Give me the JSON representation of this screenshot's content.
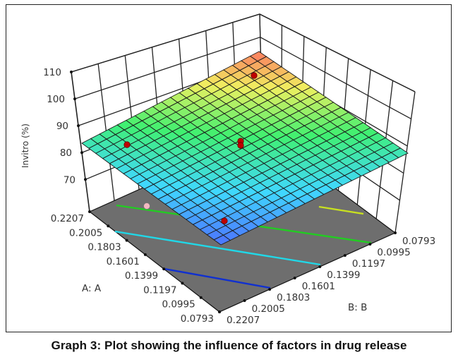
{
  "caption": "Graph 3: Plot showing the influence of factors in drug release",
  "chart_data": {
    "type": "surface3d",
    "title": "",
    "zlabel": "Invitro (%)",
    "xlabel": "A: A",
    "ylabel": "B: B",
    "z_ticks": [
      "70",
      "80",
      "90",
      "100",
      "110"
    ],
    "z_tick_values": [
      70,
      80,
      90,
      100,
      110
    ],
    "zlim": [
      58,
      110
    ],
    "a_ticks": [
      "0.2207",
      "0.2005",
      "0.1803",
      "0.1601",
      "0.1399",
      "0.1197",
      "0.0995",
      "0.0793"
    ],
    "b_ticks": [
      "0.0793",
      "0.0995",
      "0.1197",
      "0.1399",
      "0.1601",
      "0.1803",
      "0.2005",
      "0.2207"
    ],
    "a_range": [
      0.0793,
      0.2207
    ],
    "b_range": [
      0.0793,
      0.2207
    ],
    "surface_corners": {
      "a_high_b_high": 80,
      "a_low_b_high": 65,
      "a_low_b_low": 80,
      "a_high_b_low": 108
    },
    "grid_divisions": 20,
    "design_points": [
      {
        "A": 0.2005,
        "B": 0.2207,
        "z": 80,
        "color": "#c00000"
      },
      {
        "A": 0.2207,
        "B": 0.1197,
        "z": 104,
        "color": "#c00000"
      },
      {
        "A": 0.15,
        "B": 0.15,
        "z": 86,
        "color": "#c00000"
      },
      {
        "A": 0.15,
        "B": 0.15,
        "z": 85,
        "color": "#c00000"
      },
      {
        "A": 0.0995,
        "B": 0.1803,
        "z": 70,
        "color": "#c00000"
      },
      {
        "A": 0.2207,
        "B": 0.21,
        "z": 58,
        "color": "#f4b8c0"
      }
    ],
    "floor_contours": [
      {
        "color": "#1030d0"
      },
      {
        "color": "#20d8e8"
      },
      {
        "color": "#22cc22"
      },
      {
        "color": "#c8e020"
      }
    ],
    "colormap": [
      "#5050ff",
      "#40d8ff",
      "#40f070",
      "#f0f060",
      "#ff6060"
    ],
    "floor_color": "#6e6e6e"
  }
}
